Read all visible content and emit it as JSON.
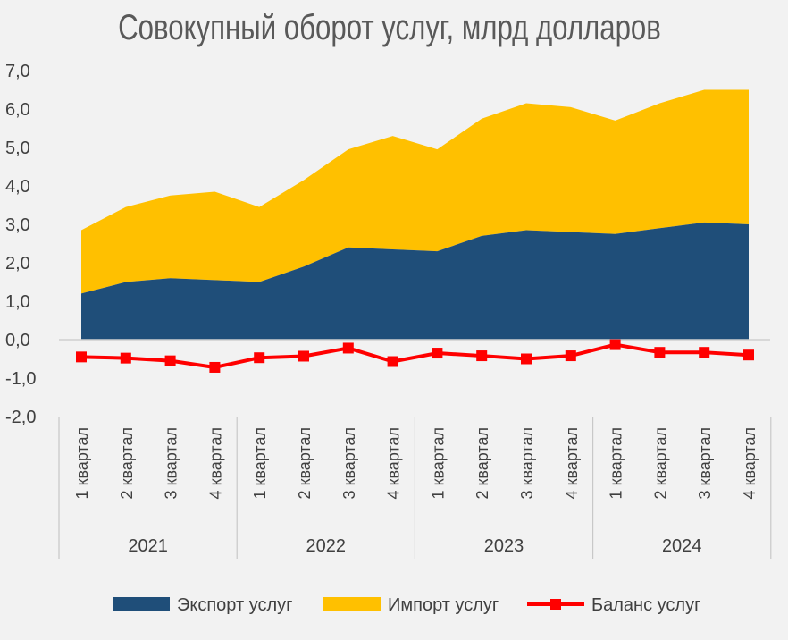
{
  "chart_data": {
    "type": "area",
    "title": "Совокупный оборот услуг, млрд долларов",
    "ylim": [
      -2.0,
      7.0
    ],
    "y_ticks": [
      "7,0",
      "6,0",
      "5,0",
      "4,0",
      "3,0",
      "2,0",
      "1,0",
      "0,0",
      "-1,0",
      "-2,0"
    ],
    "categories": [
      "1 квартал",
      "2 квартал",
      "3 квартал",
      "4 квартал",
      "1 квартал",
      "2 квартал",
      "3 квартал",
      "4 квартал",
      "1 квартал",
      "2 квартал",
      "3 квартал",
      "4 квартал",
      "1 квартал",
      "2 квартал",
      "3 квартал",
      "4 квартал"
    ],
    "years": [
      "2021",
      "2022",
      "2023",
      "2024"
    ],
    "series": [
      {
        "name": "Экспорт услуг",
        "kind": "area",
        "color": "#1f4e79",
        "values": [
          1.2,
          1.5,
          1.6,
          1.55,
          1.5,
          1.9,
          2.4,
          2.35,
          2.3,
          2.7,
          2.85,
          2.8,
          2.75,
          2.9,
          3.05,
          3.0
        ]
      },
      {
        "name": "Импорт услуг",
        "kind": "stacked-area",
        "color": "#ffc000",
        "values": [
          1.65,
          1.95,
          2.15,
          2.3,
          1.95,
          2.25,
          2.55,
          2.95,
          2.65,
          3.05,
          3.3,
          3.25,
          2.95,
          3.25,
          3.45,
          3.5
        ]
      },
      {
        "name": "Баланс услуг",
        "kind": "line",
        "color": "#ff0000",
        "values": [
          -0.45,
          -0.48,
          -0.55,
          -0.72,
          -0.47,
          -0.43,
          -0.22,
          -0.57,
          -0.35,
          -0.42,
          -0.5,
          -0.42,
          -0.13,
          -0.33,
          -0.33,
          -0.4
        ]
      }
    ],
    "legend": "bottom",
    "grid": false
  }
}
